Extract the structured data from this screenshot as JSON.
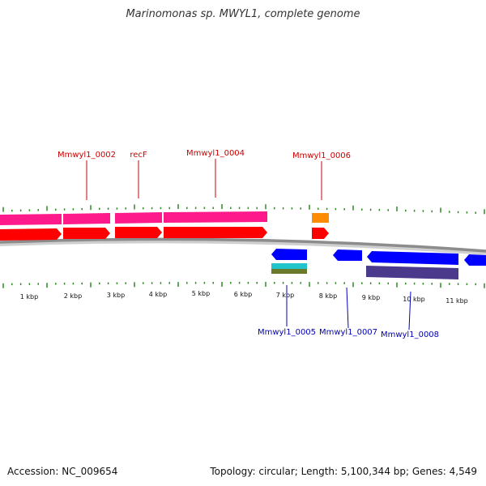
{
  "title": "Marinomonas sp. MWYL1, complete genome",
  "footer": {
    "accession": "Accession: NC_009654",
    "summary": "Topology: circular; Length: 5,100,344 bp; Genes: 4,549"
  },
  "colors": {
    "backbone": "#8c8c8c",
    "ticks": "#2e8b22",
    "forward_label": "#cc0000",
    "reverse_label": "#0000bb",
    "forward_cds": "#ff0000",
    "forward_gene": "#ff1a8c",
    "forward_trna_cds": "#ff0000",
    "forward_trna": "#ff8c00",
    "reverse_cds": "#0000ff",
    "reverse_gene": "#4b3a8c",
    "reverse_rrna_a": "#22c4cc",
    "reverse_rrna_b": "#6b7a2a"
  },
  "kbp_labels": [
    "1 kbp",
    "2 kbp",
    "3 kbp",
    "4 kbp",
    "5 kbp",
    "6 kbp",
    "7 kbp",
    "8 kbp",
    "9 kbp",
    "10 kbp",
    "11 kbp"
  ],
  "forward_labels": [
    "Mmwyl1_0002",
    "recF",
    "Mmwyl1_0004",
    "Mmwyl1_0006"
  ],
  "reverse_labels": [
    "Mmwyl1_0005",
    "Mmwyl1_0007",
    "Mmwyl1_0008"
  ]
}
